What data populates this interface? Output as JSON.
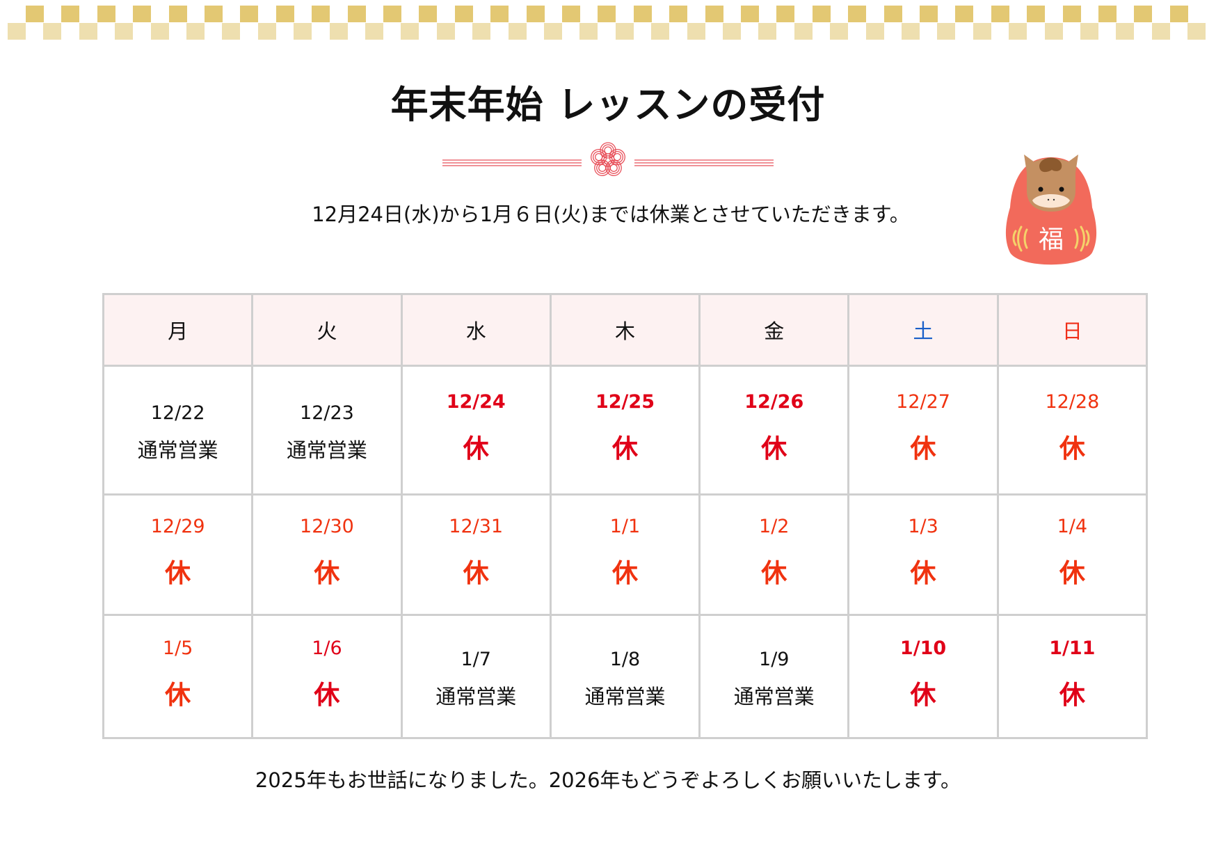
{
  "header": {
    "title": "年末年始 レッスンの受付"
  },
  "notice": "12月24日(水)から1月６日(火)までは休業とさせていただきます。",
  "illustration": {
    "name": "horse-daruma-icon",
    "label": "福"
  },
  "calendar": {
    "weekdays": [
      {
        "label": "月",
        "color": "#111111"
      },
      {
        "label": "火",
        "color": "#111111"
      },
      {
        "label": "水",
        "color": "#111111"
      },
      {
        "label": "木",
        "color": "#111111"
      },
      {
        "label": "金",
        "color": "#111111"
      },
      {
        "label": "土",
        "color": "#1a5fc8"
      },
      {
        "label": "日",
        "color": "#f0301a"
      }
    ],
    "weeks": [
      [
        {
          "date": "12/22",
          "status": "通常営業",
          "closed": false
        },
        {
          "date": "12/23",
          "status": "通常営業",
          "closed": false
        },
        {
          "date": "12/24",
          "status": "休",
          "closed": true,
          "tone": "crimson",
          "bold_date": true
        },
        {
          "date": "12/25",
          "status": "休",
          "closed": true,
          "tone": "crimson",
          "bold_date": true
        },
        {
          "date": "12/26",
          "status": "休",
          "closed": true,
          "tone": "crimson",
          "bold_date": true
        },
        {
          "date": "12/27",
          "status": "休",
          "closed": true,
          "tone": "orange",
          "bold_date": false
        },
        {
          "date": "12/28",
          "status": "休",
          "closed": true,
          "tone": "orange",
          "bold_date": false
        }
      ],
      [
        {
          "date": "12/29",
          "status": "休",
          "closed": true,
          "tone": "orange",
          "bold_date": false
        },
        {
          "date": "12/30",
          "status": "休",
          "closed": true,
          "tone": "orange",
          "bold_date": false
        },
        {
          "date": "12/31",
          "status": "休",
          "closed": true,
          "tone": "orange",
          "bold_date": false
        },
        {
          "date": "1/1",
          "status": "休",
          "closed": true,
          "tone": "orange",
          "bold_date": false
        },
        {
          "date": "1/2",
          "status": "休",
          "closed": true,
          "tone": "orange",
          "bold_date": false
        },
        {
          "date": "1/3",
          "status": "休",
          "closed": true,
          "tone": "orange",
          "bold_date": false
        },
        {
          "date": "1/4",
          "status": "休",
          "closed": true,
          "tone": "orange",
          "bold_date": false
        }
      ],
      [
        {
          "date": "1/5",
          "status": "休",
          "closed": true,
          "tone": "orange",
          "bold_date": false
        },
        {
          "date": "1/6",
          "status": "休",
          "closed": true,
          "tone": "crimson",
          "bold_date": false
        },
        {
          "date": "1/7",
          "status": "通常営業",
          "closed": false
        },
        {
          "date": "1/8",
          "status": "通常営業",
          "closed": false
        },
        {
          "date": "1/9",
          "status": "通常営業",
          "closed": false
        },
        {
          "date": "1/10",
          "status": "休",
          "closed": true,
          "tone": "crimson",
          "bold_date": true
        },
        {
          "date": "1/11",
          "status": "休",
          "closed": true,
          "tone": "crimson",
          "bold_date": true
        }
      ]
    ]
  },
  "footer": "2025年もお世話になりました。2026年もどうぞよろしくお願いいたします。",
  "colors": {
    "checker_dark": "#e3c873",
    "checker_light": "#eedfaf",
    "mizuhiki_red": "#e8505a",
    "header_bg": "#fdf2f2",
    "border": "#cfcfcf",
    "closed_crimson": "#e00018",
    "closed_orange": "#f0320f",
    "saturday_blue": "#1a5fc8",
    "sunday_red": "#f0301a"
  }
}
